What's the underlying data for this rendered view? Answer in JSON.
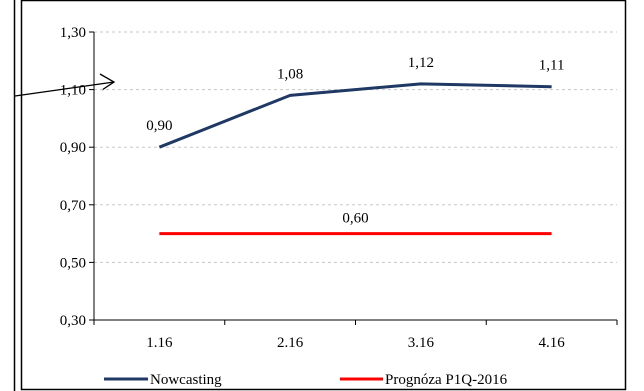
{
  "chart_data": {
    "type": "line",
    "categories": [
      "1.16",
      "2.16",
      "3.16",
      "4.16"
    ],
    "series": [
      {
        "name": "Nowcasting",
        "values": [
          0.9,
          1.08,
          1.12,
          1.11
        ],
        "labels": [
          "0,90",
          "1,08",
          "1,12",
          "1,11"
        ],
        "color": "#1F3864"
      },
      {
        "name": "Prognóza P1Q-2016",
        "values": [
          0.6,
          0.6,
          0.6,
          0.6
        ],
        "label": "0,60",
        "color": "#FF0000"
      }
    ],
    "ylim": [
      0.3,
      1.3
    ],
    "yticks": [
      0.3,
      0.5,
      0.7,
      0.9,
      1.1,
      1.3
    ],
    "ytick_labels": [
      "0,30",
      "0,50",
      "0,70",
      "0,90",
      "1,10",
      "1,30"
    ],
    "grid": true,
    "legend_position": "bottom",
    "title": "",
    "xlabel": "",
    "ylabel": ""
  }
}
